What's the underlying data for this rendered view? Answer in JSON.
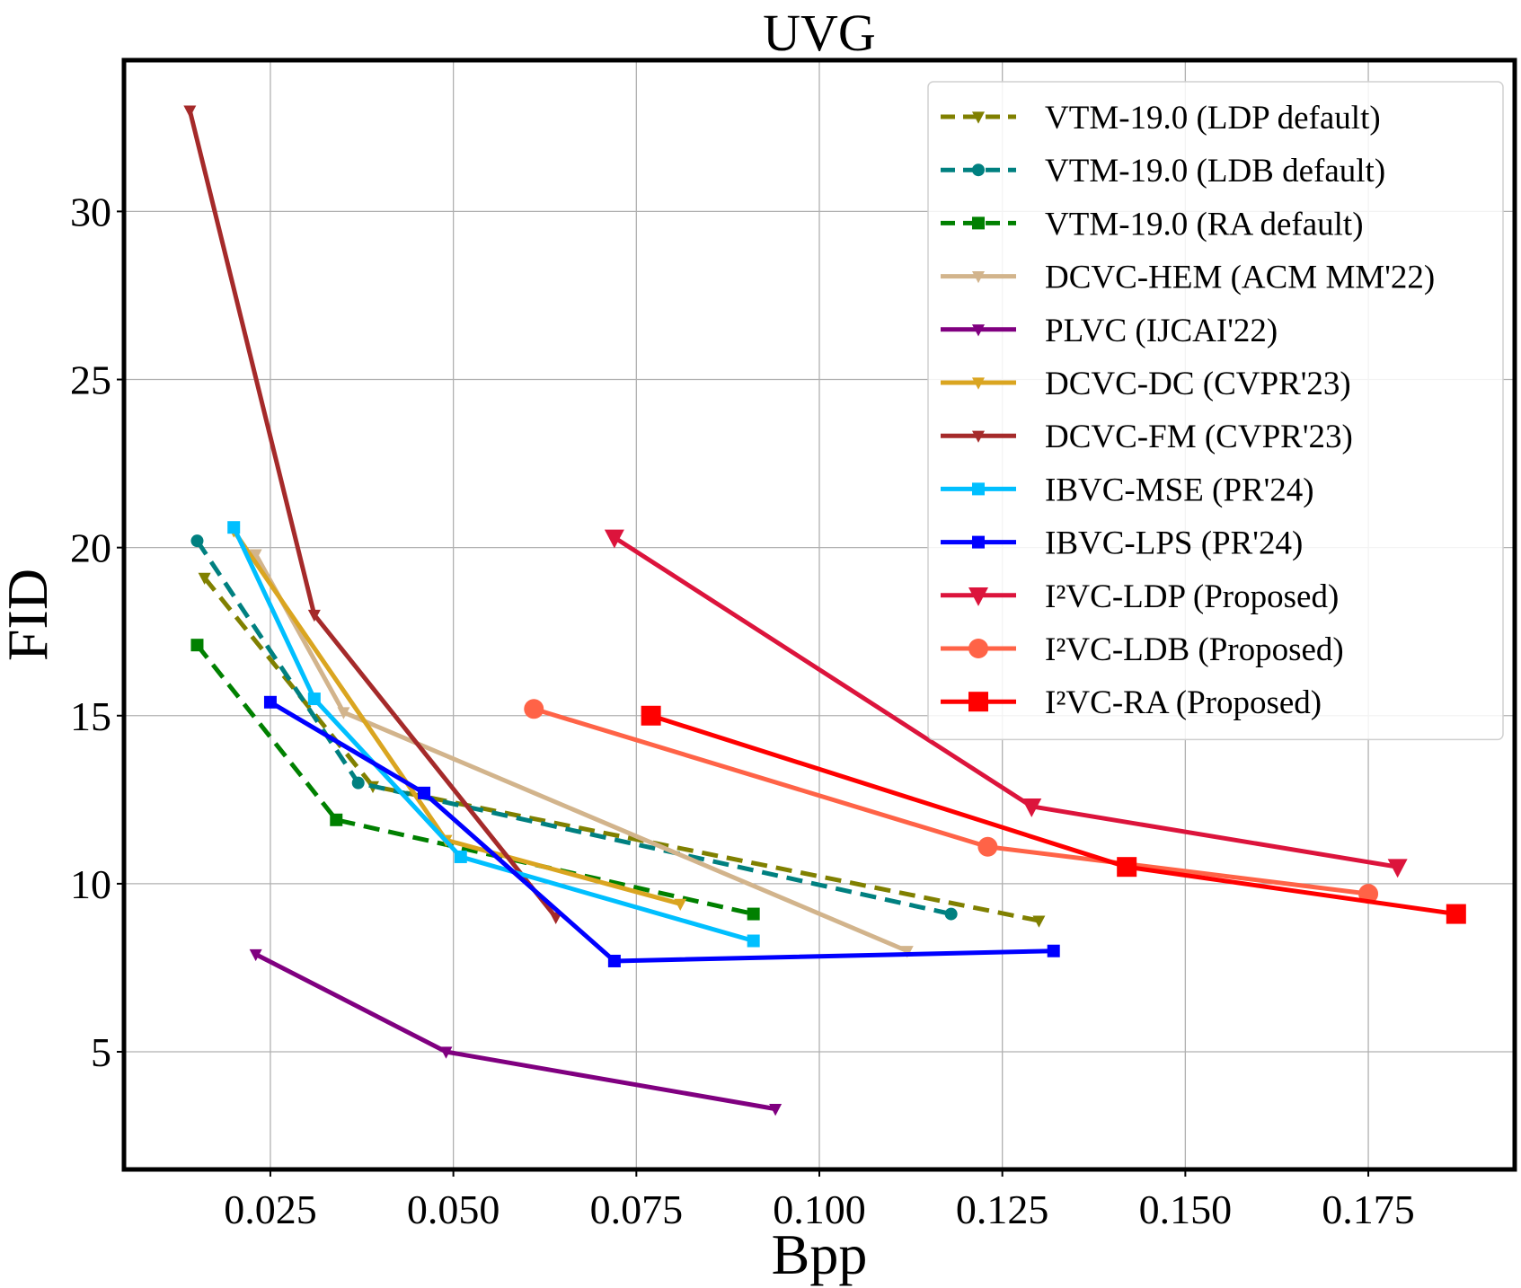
{
  "chart_data": {
    "type": "line",
    "title": "UVG",
    "xlabel": "Bpp",
    "ylabel": "FID",
    "xlim": [
      0.005,
      0.195
    ],
    "ylim": [
      1.5,
      34.5
    ],
    "grid": true,
    "legend_position": "top-right",
    "x_ticks": [
      "0.025",
      "0.050",
      "0.075",
      "0.100",
      "0.125",
      "0.150",
      "0.175"
    ],
    "y_ticks": [
      "5",
      "10",
      "15",
      "20",
      "25",
      "30"
    ],
    "series": [
      {
        "name": "VTM-19.0 (LDP default)",
        "color": "#808000",
        "dash": true,
        "marker": "triangle-down",
        "x": [
          0.016,
          0.039,
          0.13
        ],
        "y": [
          19.1,
          12.9,
          8.9
        ]
      },
      {
        "name": "VTM-19.0 (LDB default)",
        "color": "#008080",
        "dash": true,
        "marker": "circle",
        "x": [
          0.015,
          0.037,
          0.118
        ],
        "y": [
          20.2,
          13.0,
          9.1
        ]
      },
      {
        "name": "VTM-19.0 (RA default)",
        "color": "#008000",
        "dash": true,
        "marker": "square",
        "x": [
          0.015,
          0.034,
          0.091
        ],
        "y": [
          17.1,
          11.9,
          9.1
        ]
      },
      {
        "name": "DCVC-HEM (ACM MM'22)",
        "color": "#d2b48c",
        "dash": false,
        "marker": "triangle-down",
        "x": [
          0.023,
          0.035,
          0.112
        ],
        "y": [
          19.8,
          15.1,
          8.0
        ]
      },
      {
        "name": "PLVC (IJCAI'22)",
        "color": "#800080",
        "dash": false,
        "marker": "triangle-down",
        "x": [
          0.023,
          0.049,
          0.094
        ],
        "y": [
          7.9,
          5.0,
          3.3
        ]
      },
      {
        "name": "DCVC-DC (CVPR'23)",
        "color": "#daa520",
        "dash": false,
        "marker": "triangle-down",
        "x": [
          0.02,
          0.049,
          0.081
        ],
        "y": [
          20.5,
          11.3,
          9.4
        ]
      },
      {
        "name": "DCVC-FM (CVPR'23)",
        "color": "#a52a2a",
        "dash": false,
        "marker": "triangle-down",
        "x": [
          0.014,
          0.031,
          0.064
        ],
        "y": [
          33.0,
          18.0,
          9.0
        ]
      },
      {
        "name": "IBVC-MSE (PR'24)",
        "color": "#00bfff",
        "dash": false,
        "marker": "square",
        "x": [
          0.02,
          0.031,
          0.051,
          0.091
        ],
        "y": [
          20.6,
          15.5,
          10.8,
          8.3
        ]
      },
      {
        "name": "IBVC-LPS (PR'24)",
        "color": "#0000ff",
        "dash": false,
        "marker": "square",
        "x": [
          0.025,
          0.046,
          0.072,
          0.132
        ],
        "y": [
          15.4,
          12.7,
          7.7,
          8.0
        ]
      },
      {
        "name": "I²VC-LDP (Proposed)",
        "color": "#dc143c",
        "dash": false,
        "marker": "triangle-down-large",
        "x": [
          0.072,
          0.129,
          0.179
        ],
        "y": [
          20.3,
          12.3,
          10.5
        ]
      },
      {
        "name": "I²VC-LDB (Proposed)",
        "color": "#ff6347",
        "dash": false,
        "marker": "circle-large",
        "x": [
          0.061,
          0.123,
          0.175
        ],
        "y": [
          15.2,
          11.1,
          9.7
        ]
      },
      {
        "name": "I²VC-RA (Proposed)",
        "color": "#ff0000",
        "dash": false,
        "marker": "square-large",
        "x": [
          0.077,
          0.142,
          0.187
        ],
        "y": [
          15.0,
          10.5,
          9.1
        ]
      }
    ]
  }
}
